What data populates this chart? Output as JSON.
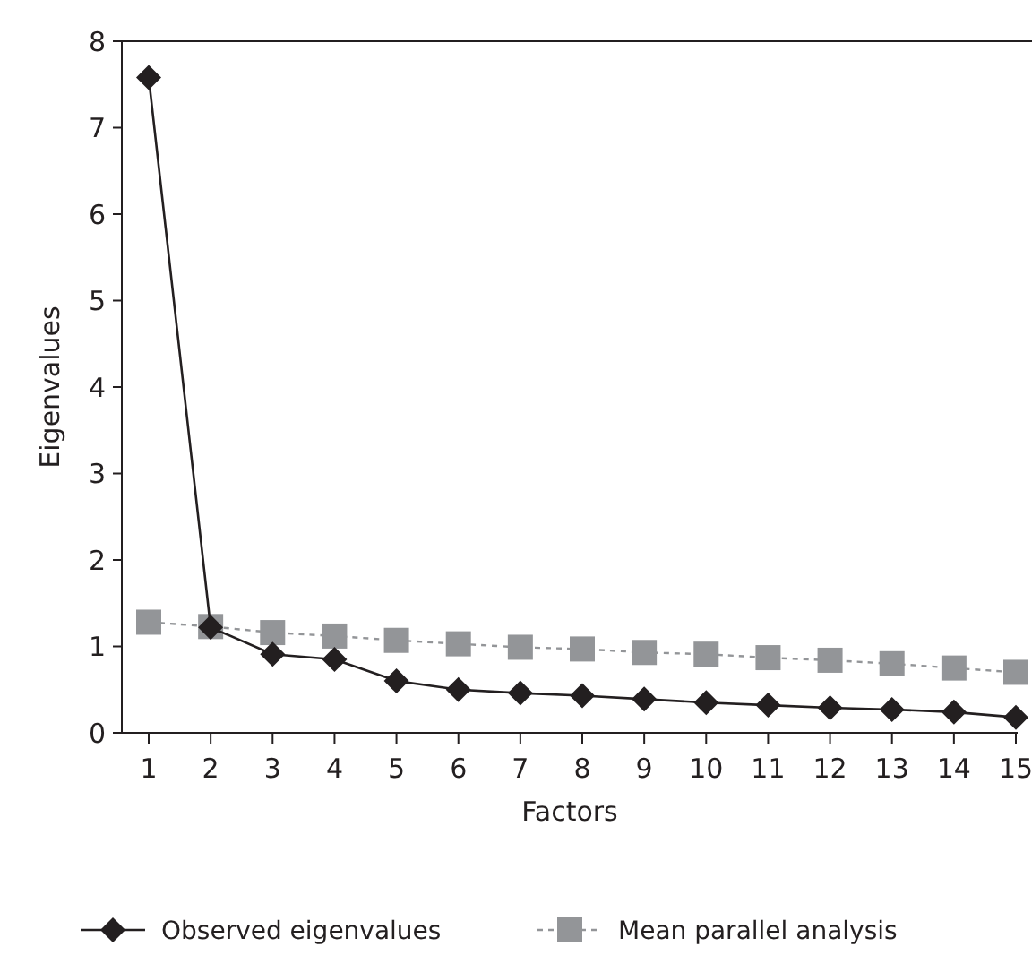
{
  "chart_data": {
    "type": "line",
    "xlabel": "Factors",
    "ylabel": "Eigenvalues",
    "categories": [
      "1",
      "2",
      "3",
      "4",
      "5",
      "6",
      "7",
      "8",
      "9",
      "10",
      "11",
      "12",
      "13",
      "14",
      "15"
    ],
    "series": [
      {
        "name": "Observed eigenvalues",
        "color": "#231f20",
        "marker": "diamond",
        "line_style": "solid",
        "values": [
          7.58,
          1.22,
          0.91,
          0.85,
          0.6,
          0.5,
          0.46,
          0.43,
          0.39,
          0.35,
          0.32,
          0.29,
          0.27,
          0.24,
          0.18
        ]
      },
      {
        "name": "Mean parallel analysis",
        "color": "#939598",
        "marker": "square",
        "line_style": "dotted",
        "values": [
          1.28,
          1.23,
          1.16,
          1.12,
          1.07,
          1.03,
          0.99,
          0.97,
          0.93,
          0.91,
          0.87,
          0.84,
          0.8,
          0.75,
          0.7
        ]
      }
    ],
    "ylim": [
      0,
      8
    ],
    "yticks": [
      0,
      1,
      2,
      3,
      4,
      5,
      6,
      7,
      8
    ],
    "grid": false,
    "legend": "bottom"
  }
}
